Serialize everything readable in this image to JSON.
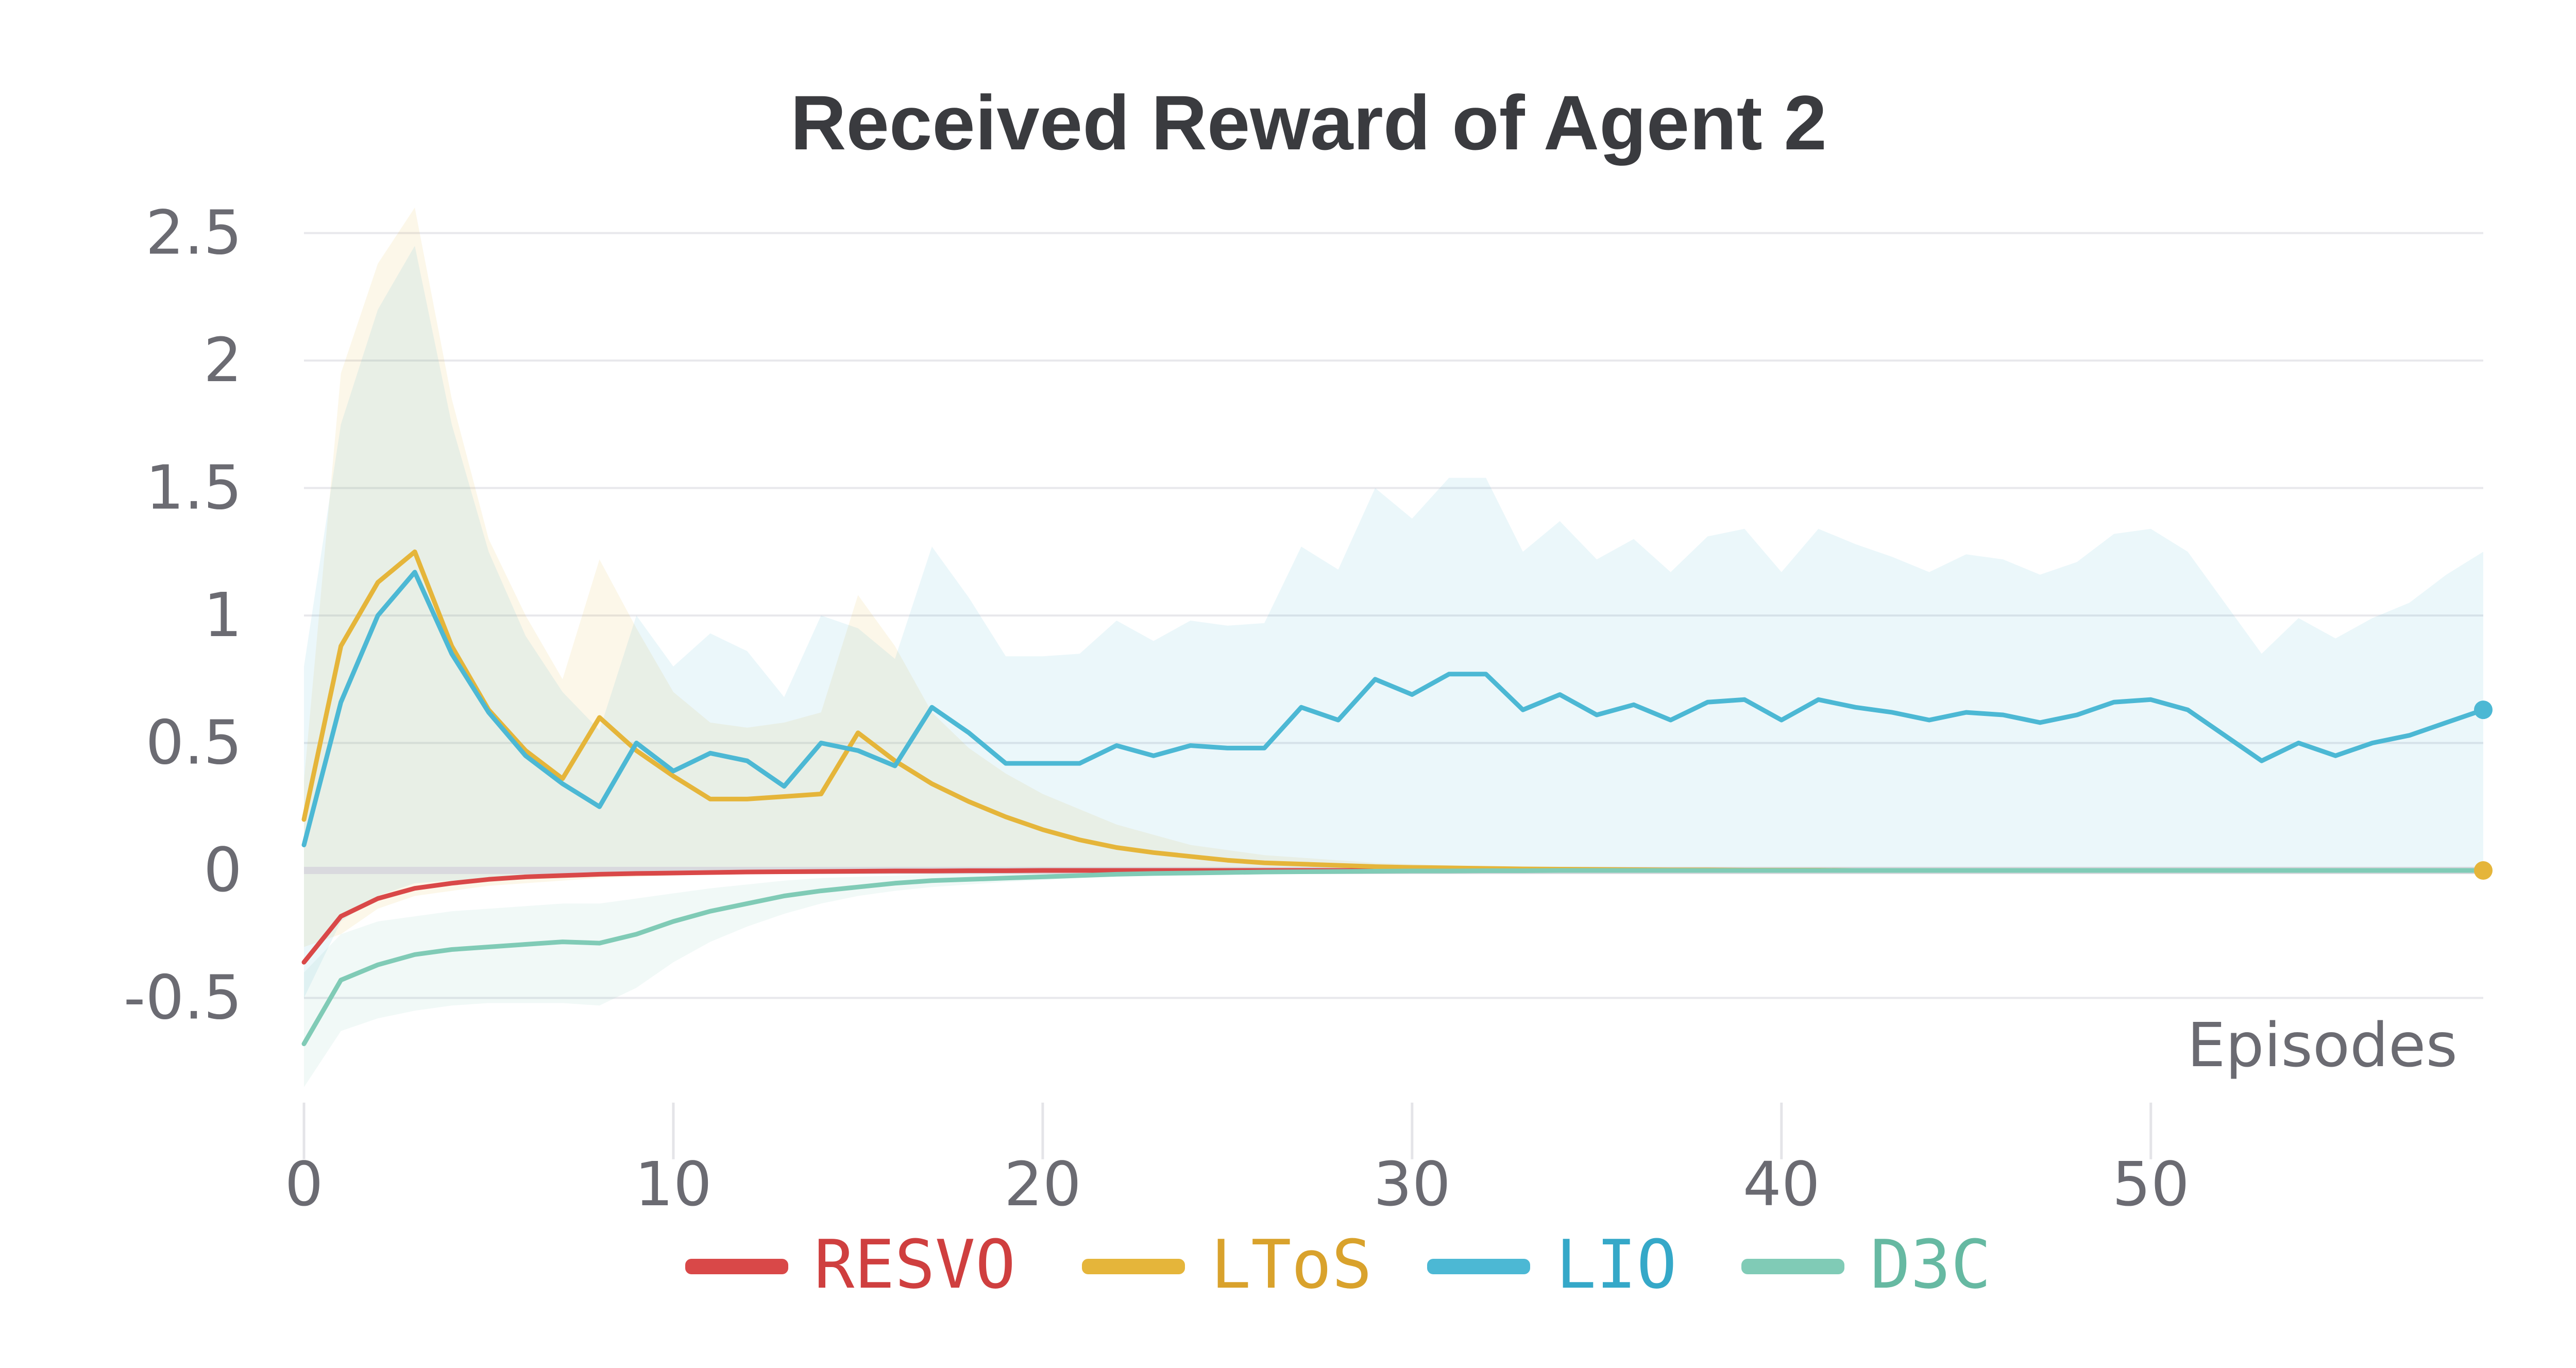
{
  "chart_data": {
    "type": "line",
    "title": "Received Reward of Agent 2",
    "xlabel": "Episodes",
    "ylabel": "",
    "xlim": [
      0,
      59
    ],
    "ylim": [
      -0.85,
      2.6
    ],
    "x_ticks": [
      0,
      10,
      20,
      30,
      40,
      50
    ],
    "y_ticks": [
      -0.5,
      0,
      0.5,
      1,
      1.5,
      2,
      2.5
    ],
    "y_tick_labels": [
      "-0.5",
      "0",
      "0.5",
      "1",
      "1.5",
      "2",
      "2.5"
    ],
    "grid": "horizontal",
    "legend_position": "bottom",
    "series": [
      {
        "name": "RESVO",
        "color": "#d94848",
        "values": [
          -0.36,
          -0.18,
          -0.11,
          -0.07,
          -0.05,
          -0.035,
          -0.025,
          -0.02,
          -0.015,
          -0.012,
          -0.01,
          -0.008,
          -0.006,
          -0.005,
          -0.004,
          -0.003,
          -0.002,
          -0.002,
          -0.001,
          -0.001,
          0,
          0,
          0,
          0,
          0,
          0,
          0,
          0,
          0,
          0,
          0,
          0,
          0,
          0,
          0,
          0,
          0,
          0,
          0,
          0,
          0,
          0,
          0,
          0,
          0,
          0,
          0,
          0,
          0,
          0,
          0,
          0,
          0,
          0,
          0,
          0,
          0,
          0,
          0,
          0
        ],
        "band_upper": null,
        "band_lower": null
      },
      {
        "name": "LToS",
        "color": "#e5b53a",
        "values": [
          0.2,
          0.88,
          1.13,
          1.25,
          0.88,
          0.63,
          0.47,
          0.36,
          0.6,
          0.47,
          0.37,
          0.28,
          0.28,
          0.29,
          0.3,
          0.54,
          0.43,
          0.34,
          0.27,
          0.21,
          0.16,
          0.12,
          0.09,
          0.07,
          0.055,
          0.04,
          0.03,
          0.025,
          0.02,
          0.015,
          0.012,
          0.01,
          0.008,
          0.006,
          0.005,
          0.004,
          0.003,
          0.002,
          0.002,
          0.001,
          0.001,
          0.001,
          0,
          0,
          0,
          0,
          0,
          0,
          0,
          0,
          0,
          0,
          0,
          0,
          0,
          0,
          0,
          0,
          0,
          0
        ],
        "band_upper": [
          0.35,
          1.95,
          2.38,
          2.6,
          1.85,
          1.3,
          1.0,
          0.75,
          1.22,
          0.95,
          0.7,
          0.58,
          0.56,
          0.58,
          0.62,
          1.08,
          0.88,
          0.62,
          0.48,
          0.38,
          0.3,
          0.24,
          0.18,
          0.14,
          0.1,
          0.08,
          0.06,
          0.05,
          0.04,
          0.03,
          0.025,
          0.02,
          0.015,
          0.012,
          0.01,
          0.008,
          0.006,
          0.005,
          0.004,
          0.003,
          0.002,
          0.002,
          0.001,
          0.001,
          0.001,
          0,
          0,
          0,
          0,
          0,
          0,
          0,
          0,
          0,
          0,
          0,
          0,
          0,
          0,
          0
        ],
        "band_lower": [
          -0.3,
          -0.25,
          -0.15,
          -0.1,
          -0.08,
          -0.06,
          -0.05,
          -0.04,
          -0.03,
          -0.025,
          -0.02,
          -0.015,
          -0.012,
          -0.01,
          -0.008,
          -0.006,
          -0.005,
          -0.004,
          -0.003,
          -0.002,
          -0.002,
          -0.001,
          -0.001,
          0,
          0,
          0,
          0,
          0,
          0,
          0,
          0,
          0,
          0,
          0,
          0,
          0,
          0,
          0,
          0,
          0,
          0,
          0,
          0,
          0,
          0,
          0,
          0,
          0,
          0,
          0,
          0,
          0,
          0,
          0,
          0,
          0,
          0,
          0,
          0,
          0
        ]
      },
      {
        "name": "LIO",
        "color": "#4cb8d4",
        "values": [
          0.1,
          0.66,
          1.0,
          1.17,
          0.85,
          0.62,
          0.45,
          0.34,
          0.25,
          0.5,
          0.39,
          0.46,
          0.43,
          0.33,
          0.5,
          0.47,
          0.41,
          0.64,
          0.54,
          0.42,
          0.42,
          0.42,
          0.49,
          0.45,
          0.49,
          0.48,
          0.48,
          0.64,
          0.59,
          0.75,
          0.69,
          0.77,
          0.77,
          0.63,
          0.69,
          0.61,
          0.65,
          0.59,
          0.66,
          0.67,
          0.59,
          0.67,
          0.64,
          0.62,
          0.59,
          0.62,
          0.61,
          0.58,
          0.61,
          0.66,
          0.67,
          0.63,
          0.53,
          0.43,
          0.5,
          0.45,
          0.5,
          0.53,
          0.58,
          0.63
        ],
        "band_upper": [
          0.8,
          1.75,
          2.2,
          2.45,
          1.75,
          1.25,
          0.92,
          0.7,
          0.55,
          1.0,
          0.8,
          0.93,
          0.86,
          0.68,
          1.0,
          0.95,
          0.83,
          1.27,
          1.07,
          0.84,
          0.84,
          0.85,
          0.98,
          0.9,
          0.98,
          0.96,
          0.97,
          1.27,
          1.18,
          1.5,
          1.38,
          1.54,
          1.54,
          1.25,
          1.37,
          1.22,
          1.3,
          1.17,
          1.31,
          1.34,
          1.17,
          1.34,
          1.28,
          1.23,
          1.17,
          1.24,
          1.22,
          1.16,
          1.21,
          1.32,
          1.34,
          1.25,
          1.05,
          0.85,
          0.99,
          0.91,
          0.99,
          1.05,
          1.16,
          1.25
        ],
        "band_lower": [
          -0.5,
          -0.2,
          -0.1,
          -0.05,
          -0.04,
          -0.03,
          -0.02,
          -0.015,
          -0.01,
          0,
          0,
          0,
          0,
          0,
          0,
          0,
          0,
          0,
          0,
          0,
          0,
          0,
          0,
          0,
          0,
          0,
          0,
          0,
          0,
          0,
          0,
          0,
          0,
          0,
          0,
          0,
          0,
          0,
          0,
          0,
          0,
          0,
          0,
          0,
          0,
          0,
          0,
          0,
          0,
          0,
          0,
          0,
          0,
          0,
          0,
          0,
          0,
          0,
          0,
          0
        ]
      },
      {
        "name": "D3C",
        "color": "#80cbb6",
        "values": [
          -0.68,
          -0.43,
          -0.37,
          -0.33,
          -0.31,
          -0.3,
          -0.29,
          -0.28,
          -0.285,
          -0.25,
          -0.2,
          -0.16,
          -0.13,
          -0.1,
          -0.08,
          -0.065,
          -0.05,
          -0.04,
          -0.035,
          -0.03,
          -0.025,
          -0.02,
          -0.015,
          -0.012,
          -0.01,
          -0.008,
          -0.006,
          -0.005,
          -0.004,
          -0.003,
          -0.002,
          -0.002,
          -0.001,
          -0.001,
          0,
          0,
          0,
          0,
          0,
          0,
          0,
          0,
          0,
          0,
          0,
          0,
          0,
          0,
          0,
          0,
          0,
          0,
          0,
          0,
          0,
          0,
          0,
          0,
          0,
          0
        ],
        "band_upper": [
          -0.4,
          -0.25,
          -0.2,
          -0.18,
          -0.16,
          -0.15,
          -0.14,
          -0.13,
          -0.13,
          -0.11,
          -0.09,
          -0.07,
          -0.055,
          -0.04,
          -0.03,
          -0.025,
          -0.02,
          -0.015,
          -0.012,
          -0.01,
          -0.008,
          -0.006,
          -0.005,
          -0.004,
          -0.003,
          -0.002,
          -0.002,
          -0.001,
          -0.001,
          0,
          0,
          0,
          0,
          0,
          0,
          0,
          0,
          0,
          0,
          0,
          0,
          0,
          0,
          0,
          0,
          0,
          0,
          0,
          0,
          0,
          0,
          0,
          0,
          0,
          0,
          0,
          0,
          0,
          0,
          0
        ],
        "band_lower": [
          -0.85,
          -0.63,
          -0.58,
          -0.55,
          -0.53,
          -0.52,
          -0.52,
          -0.52,
          -0.53,
          -0.46,
          -0.36,
          -0.28,
          -0.22,
          -0.17,
          -0.13,
          -0.1,
          -0.08,
          -0.065,
          -0.055,
          -0.045,
          -0.038,
          -0.03,
          -0.024,
          -0.019,
          -0.015,
          -0.012,
          -0.009,
          -0.007,
          -0.005,
          -0.004,
          -0.003,
          -0.002,
          -0.002,
          -0.001,
          -0.001,
          0,
          0,
          0,
          0,
          0,
          0,
          0,
          0,
          0,
          0,
          0,
          0,
          0,
          0,
          0,
          0,
          0,
          0,
          0,
          0,
          0,
          0,
          0,
          0,
          0
        ]
      }
    ]
  }
}
